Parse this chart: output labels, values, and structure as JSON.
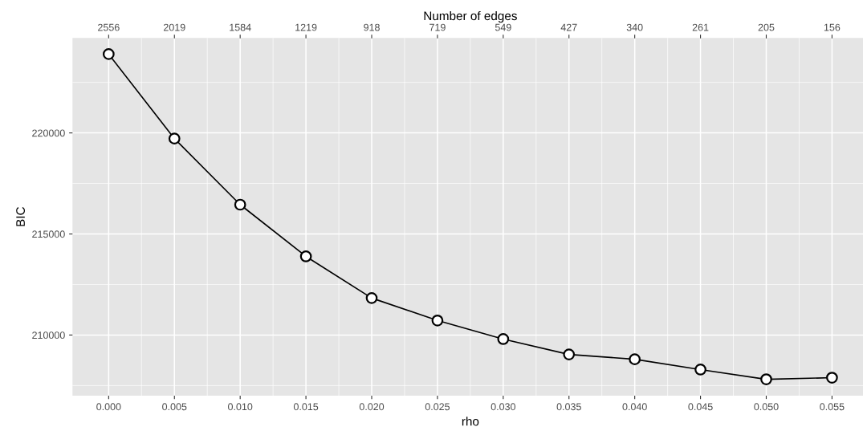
{
  "chart_data": {
    "type": "line",
    "xlabel": "rho",
    "ylabel": "BIC",
    "x2label": "Number of edges",
    "x": [
      0.0,
      0.005,
      0.01,
      0.015,
      0.02,
      0.025,
      0.03,
      0.035,
      0.04,
      0.045,
      0.05,
      0.055
    ],
    "series": [
      {
        "color": "#000000",
        "values": [
          223900,
          219720,
          216450,
          213890,
          211830,
          210720,
          209800,
          209040,
          208800,
          208290,
          207810,
          207890
        ]
      }
    ],
    "xlim": [
      -0.00275,
      0.05775
    ],
    "ylim": [
      207000,
      224700
    ],
    "xticks": [
      {
        "value": 0.0,
        "label": "0.000"
      },
      {
        "value": 0.005,
        "label": "0.005"
      },
      {
        "value": 0.01,
        "label": "0.010"
      },
      {
        "value": 0.015,
        "label": "0.015"
      },
      {
        "value": 0.02,
        "label": "0.020"
      },
      {
        "value": 0.025,
        "label": "0.025"
      },
      {
        "value": 0.03,
        "label": "0.030"
      },
      {
        "value": 0.035,
        "label": "0.035"
      },
      {
        "value": 0.04,
        "label": "0.040"
      },
      {
        "value": 0.045,
        "label": "0.045"
      },
      {
        "value": 0.05,
        "label": "0.050"
      },
      {
        "value": 0.055,
        "label": "0.055"
      }
    ],
    "annotations": [
      "2556",
      "2019",
      "1584",
      "1219",
      "918",
      "719",
      "549",
      "427",
      "340",
      "261",
      "205",
      "156"
    ],
    "yticks": [
      210000,
      215000,
      220000
    ],
    "grid": true,
    "marker": "circle",
    "line_style": "solid"
  }
}
